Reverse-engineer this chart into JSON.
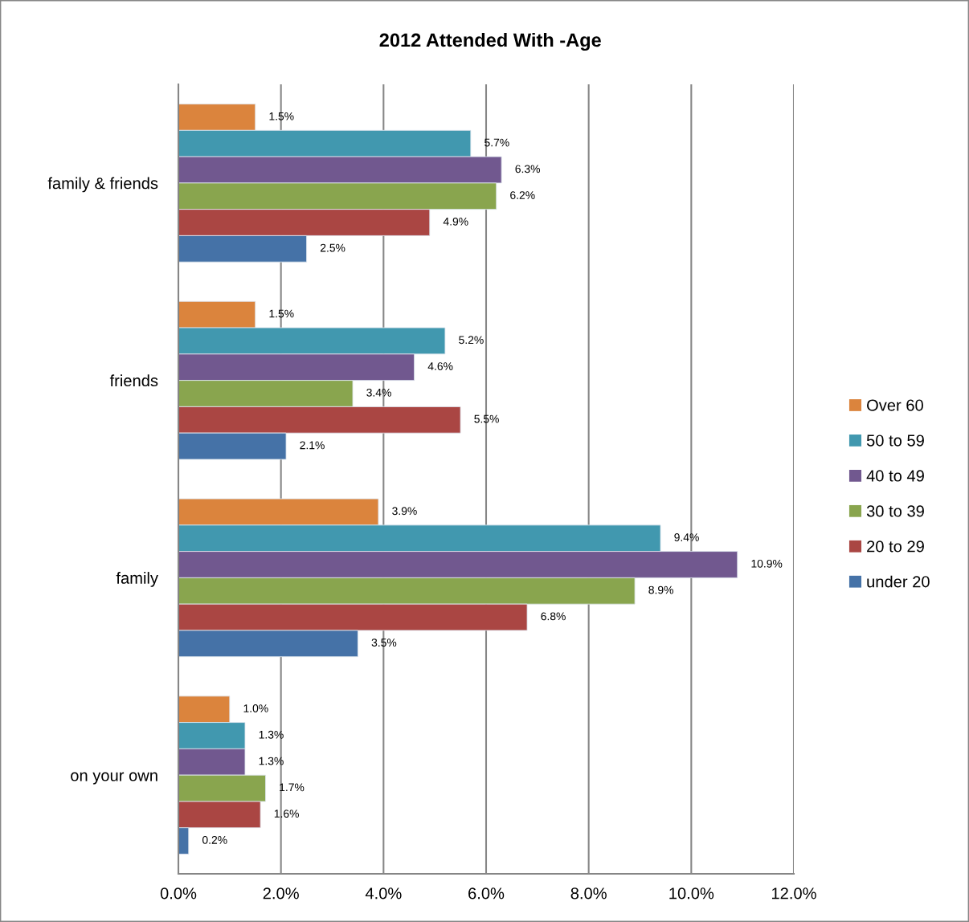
{
  "chart_data": {
    "type": "bar",
    "orientation": "horizontal",
    "title": "2012 Attended With -Age",
    "categories": [
      "family & friends",
      "friends",
      "family",
      "on your own"
    ],
    "series": [
      {
        "name": "Over 60",
        "color": "#db843d",
        "values": [
          1.5,
          1.5,
          3.9,
          1.0
        ],
        "value_labels": [
          "1.5%",
          "1.5%",
          "3.9%",
          "1.0%"
        ]
      },
      {
        "name": "50 to 59",
        "color": "#4198af",
        "values": [
          5.7,
          5.2,
          9.4,
          1.3
        ],
        "value_labels": [
          "5.7%",
          "5.2%",
          "9.4%",
          "1.3%"
        ]
      },
      {
        "name": "40 to 49",
        "color": "#71588f",
        "values": [
          6.3,
          4.6,
          10.9,
          1.3
        ],
        "value_labels": [
          "6.3%",
          "4.6%",
          "10.9%",
          "1.3%"
        ]
      },
      {
        "name": "30 to 39",
        "color": "#89a54e",
        "values": [
          6.2,
          3.4,
          8.9,
          1.7
        ],
        "value_labels": [
          "6.2%",
          "3.4%",
          "8.9%",
          "1.7%"
        ]
      },
      {
        "name": "20 to 29",
        "color": "#aa4643",
        "values": [
          4.9,
          5.5,
          6.8,
          1.6
        ],
        "value_labels": [
          "4.9%",
          "5.5%",
          "6.8%",
          "1.6%"
        ]
      },
      {
        "name": "under 20",
        "color": "#4572a7",
        "values": [
          2.5,
          2.1,
          3.5,
          0.2
        ],
        "value_labels": [
          "2.5%",
          "2.1%",
          "3.5%",
          "0.2%"
        ]
      }
    ],
    "xlim": [
      0,
      12
    ],
    "xticks": [
      {
        "value": 0,
        "label": "0.0%"
      },
      {
        "value": 2,
        "label": "2.0%"
      },
      {
        "value": 4,
        "label": "4.0%"
      },
      {
        "value": 6,
        "label": "6.0%"
      },
      {
        "value": 8,
        "label": "8.0%"
      },
      {
        "value": 10,
        "label": "10.0%"
      },
      {
        "value": 12,
        "label": "12.0%"
      }
    ],
    "grid": "x",
    "legend": "right"
  }
}
